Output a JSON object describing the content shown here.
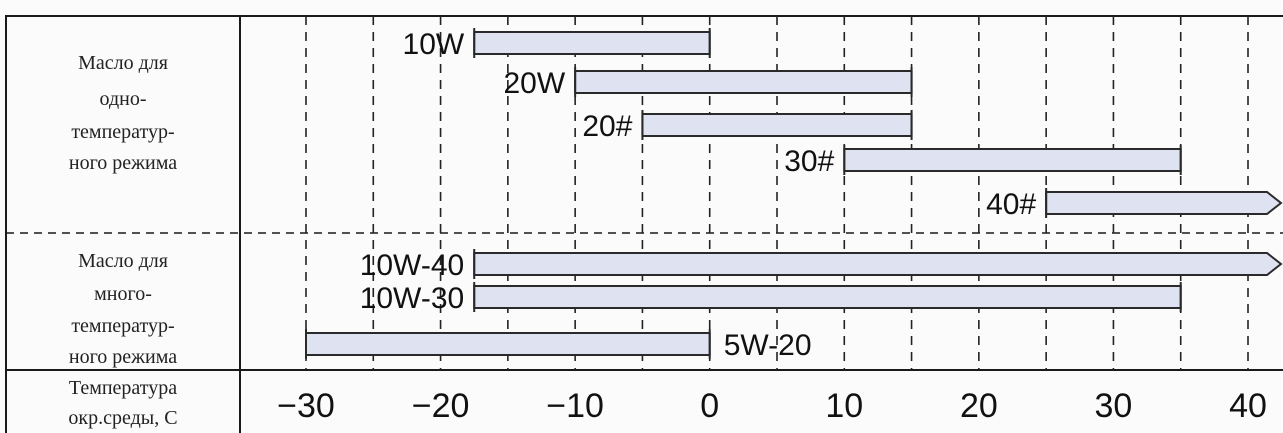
{
  "chart_data": {
    "type": "bar",
    "orientation": "horizontal-range",
    "groups": [
      {
        "label_lines": [
          "Масло для",
          "одно-",
          "температур-",
          "ного режима"
        ]
      },
      {
        "label_lines": [
          "Масло для",
          "много-",
          "температур-",
          "ного режима"
        ]
      }
    ],
    "series": [
      {
        "name": "10W",
        "group": 0,
        "start": -17.5,
        "end": 0,
        "open_end": false
      },
      {
        "name": "20W",
        "group": 0,
        "start": -10,
        "end": 15,
        "open_end": false
      },
      {
        "name": "20#",
        "group": 0,
        "start": -5,
        "end": 15,
        "open_end": false
      },
      {
        "name": "30#",
        "group": 0,
        "start": 10,
        "end": 35,
        "open_end": false
      },
      {
        "name": "40#",
        "group": 0,
        "start": 25,
        "end": 43,
        "open_end": true
      },
      {
        "name": "10W-40",
        "group": 1,
        "start": -17.5,
        "end": 43,
        "open_end": true
      },
      {
        "name": "10W-30",
        "group": 1,
        "start": -17.5,
        "end": 35,
        "open_end": false
      },
      {
        "name": "5W-20",
        "group": 1,
        "start": -30,
        "end": 0,
        "open_end": false,
        "label_side": "right"
      }
    ],
    "x_ticks": [
      -30,
      -20,
      -10,
      0,
      10,
      20,
      30,
      40
    ],
    "x_tick_labels": [
      "−30",
      "−20",
      "−10",
      "0",
      "10",
      "20",
      "30",
      "40"
    ],
    "xlabel_lines": [
      "Температура",
      "окр.среды, С"
    ],
    "xlim": [
      -30,
      40
    ],
    "grid": "dashed vertical every 5",
    "colors": {
      "bar_fill": "#dfe3f1",
      "bar_stroke": "#2a2a2a",
      "grid": "#222222",
      "border": "#1a1a1a"
    }
  }
}
